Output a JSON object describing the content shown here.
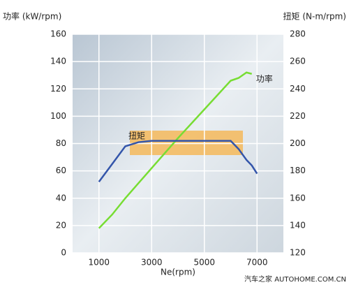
{
  "chart_data": {
    "type": "line",
    "y_title": "功率 (kW/rpm)",
    "y2_title": "扭矩 (N-m/rpm)",
    "x_title": "Ne(rpm)",
    "x": [
      1000,
      1500,
      2000,
      2500,
      3000,
      4000,
      5000,
      6000,
      6300,
      6600,
      6800,
      7000
    ],
    "series": [
      {
        "name": "功率",
        "color": "#77dd33",
        "values": [
          18,
          28,
          40,
          51,
          62,
          84,
          105,
          126,
          128,
          132,
          131,
          null
        ]
      },
      {
        "name": "扭矩",
        "color": "#3355aa",
        "axis": "y2",
        "values": [
          172,
          185,
          198,
          201,
          202,
          202,
          202,
          202,
          196,
          188,
          184,
          178
        ]
      }
    ],
    "xlim": [
      0,
      8000
    ],
    "xticks": [
      1000,
      3000,
      5000,
      7000
    ],
    "ylim": [
      0,
      160
    ],
    "yticks": [
      0,
      20,
      40,
      60,
      80,
      100,
      120,
      140,
      160
    ],
    "y2lim": [
      120,
      280
    ],
    "y2ticks": [
      120,
      140,
      160,
      180,
      200,
      220,
      240,
      260,
      280
    ],
    "grid": true,
    "watermark": "汽车之家 AUTOHOME.COM.CN"
  }
}
